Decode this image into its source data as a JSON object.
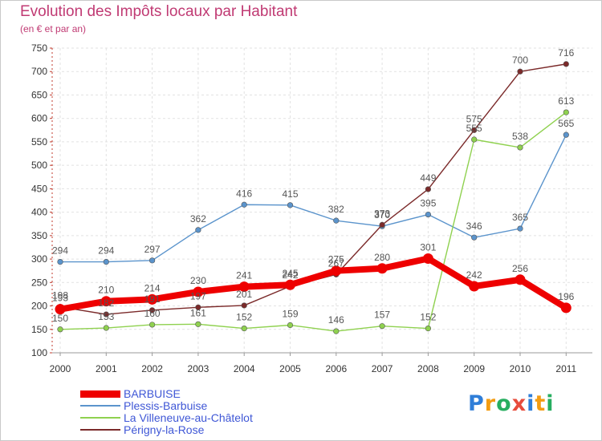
{
  "title": "Evolution des Impôts locaux par Habitant",
  "subtitle": "(en € et par an)",
  "logo": {
    "text": "Proxiti",
    "letters": [
      "P",
      "r",
      "o",
      "x",
      "i",
      "t",
      "i"
    ],
    "colors": [
      "#2f7ed8",
      "#f39c12",
      "#27ae60",
      "#e74c3c",
      "#2f7ed8",
      "#f39c12",
      "#27ae60"
    ]
  },
  "chart_data": {
    "type": "line",
    "x": [
      "2000",
      "2001",
      "2002",
      "2003",
      "2004",
      "2005",
      "2006",
      "2007",
      "2008",
      "2009",
      "2010",
      "2011"
    ],
    "ylim": [
      100,
      750
    ],
    "yticks": [
      100,
      150,
      200,
      250,
      300,
      350,
      400,
      450,
      500,
      550,
      600,
      650,
      700,
      750
    ],
    "grid": true,
    "legend_position": "bottom-left",
    "series": [
      {
        "name": "BARBUISE",
        "color": "#ee0000",
        "values": [
          193,
          210,
          214,
          230,
          241,
          245,
          275,
          280,
          301,
          242,
          256,
          196
        ],
        "labels": [
          "193",
          "210",
          "214",
          "230",
          "241",
          "245",
          "275",
          "280",
          "301",
          "242",
          "256",
          "196"
        ]
      },
      {
        "name": "Plessis-Barbuise",
        "color": "#5b94cc",
        "values": [
          294,
          294,
          297,
          362,
          416,
          415,
          382,
          370,
          395,
          346,
          365,
          565
        ],
        "labels": [
          "294",
          "294",
          "297",
          "362",
          "416",
          "415",
          "382",
          "370",
          "395",
          "346",
          "365",
          "565"
        ]
      },
      {
        "name": "La Villeneuve-au-Châtelot",
        "color": "#8fd14f",
        "values": [
          150,
          153,
          160,
          161,
          152,
          159,
          146,
          157,
          152,
          555,
          538,
          613
        ],
        "labels": [
          "150",
          "153",
          "160",
          "161",
          "152",
          "159",
          "146",
          "157",
          "152",
          "555",
          "538",
          "613"
        ]
      },
      {
        "name": "Périgny-la-Rose",
        "color": "#7b2a2a",
        "values": [
          198,
          182,
          191,
          197,
          201,
          242,
          267,
          373,
          449,
          575,
          700,
          716
        ],
        "labels": [
          "198",
          "182",
          "191",
          "197",
          "201",
          "242",
          "267",
          "373",
          "449",
          "575",
          "700",
          "716"
        ]
      }
    ]
  }
}
